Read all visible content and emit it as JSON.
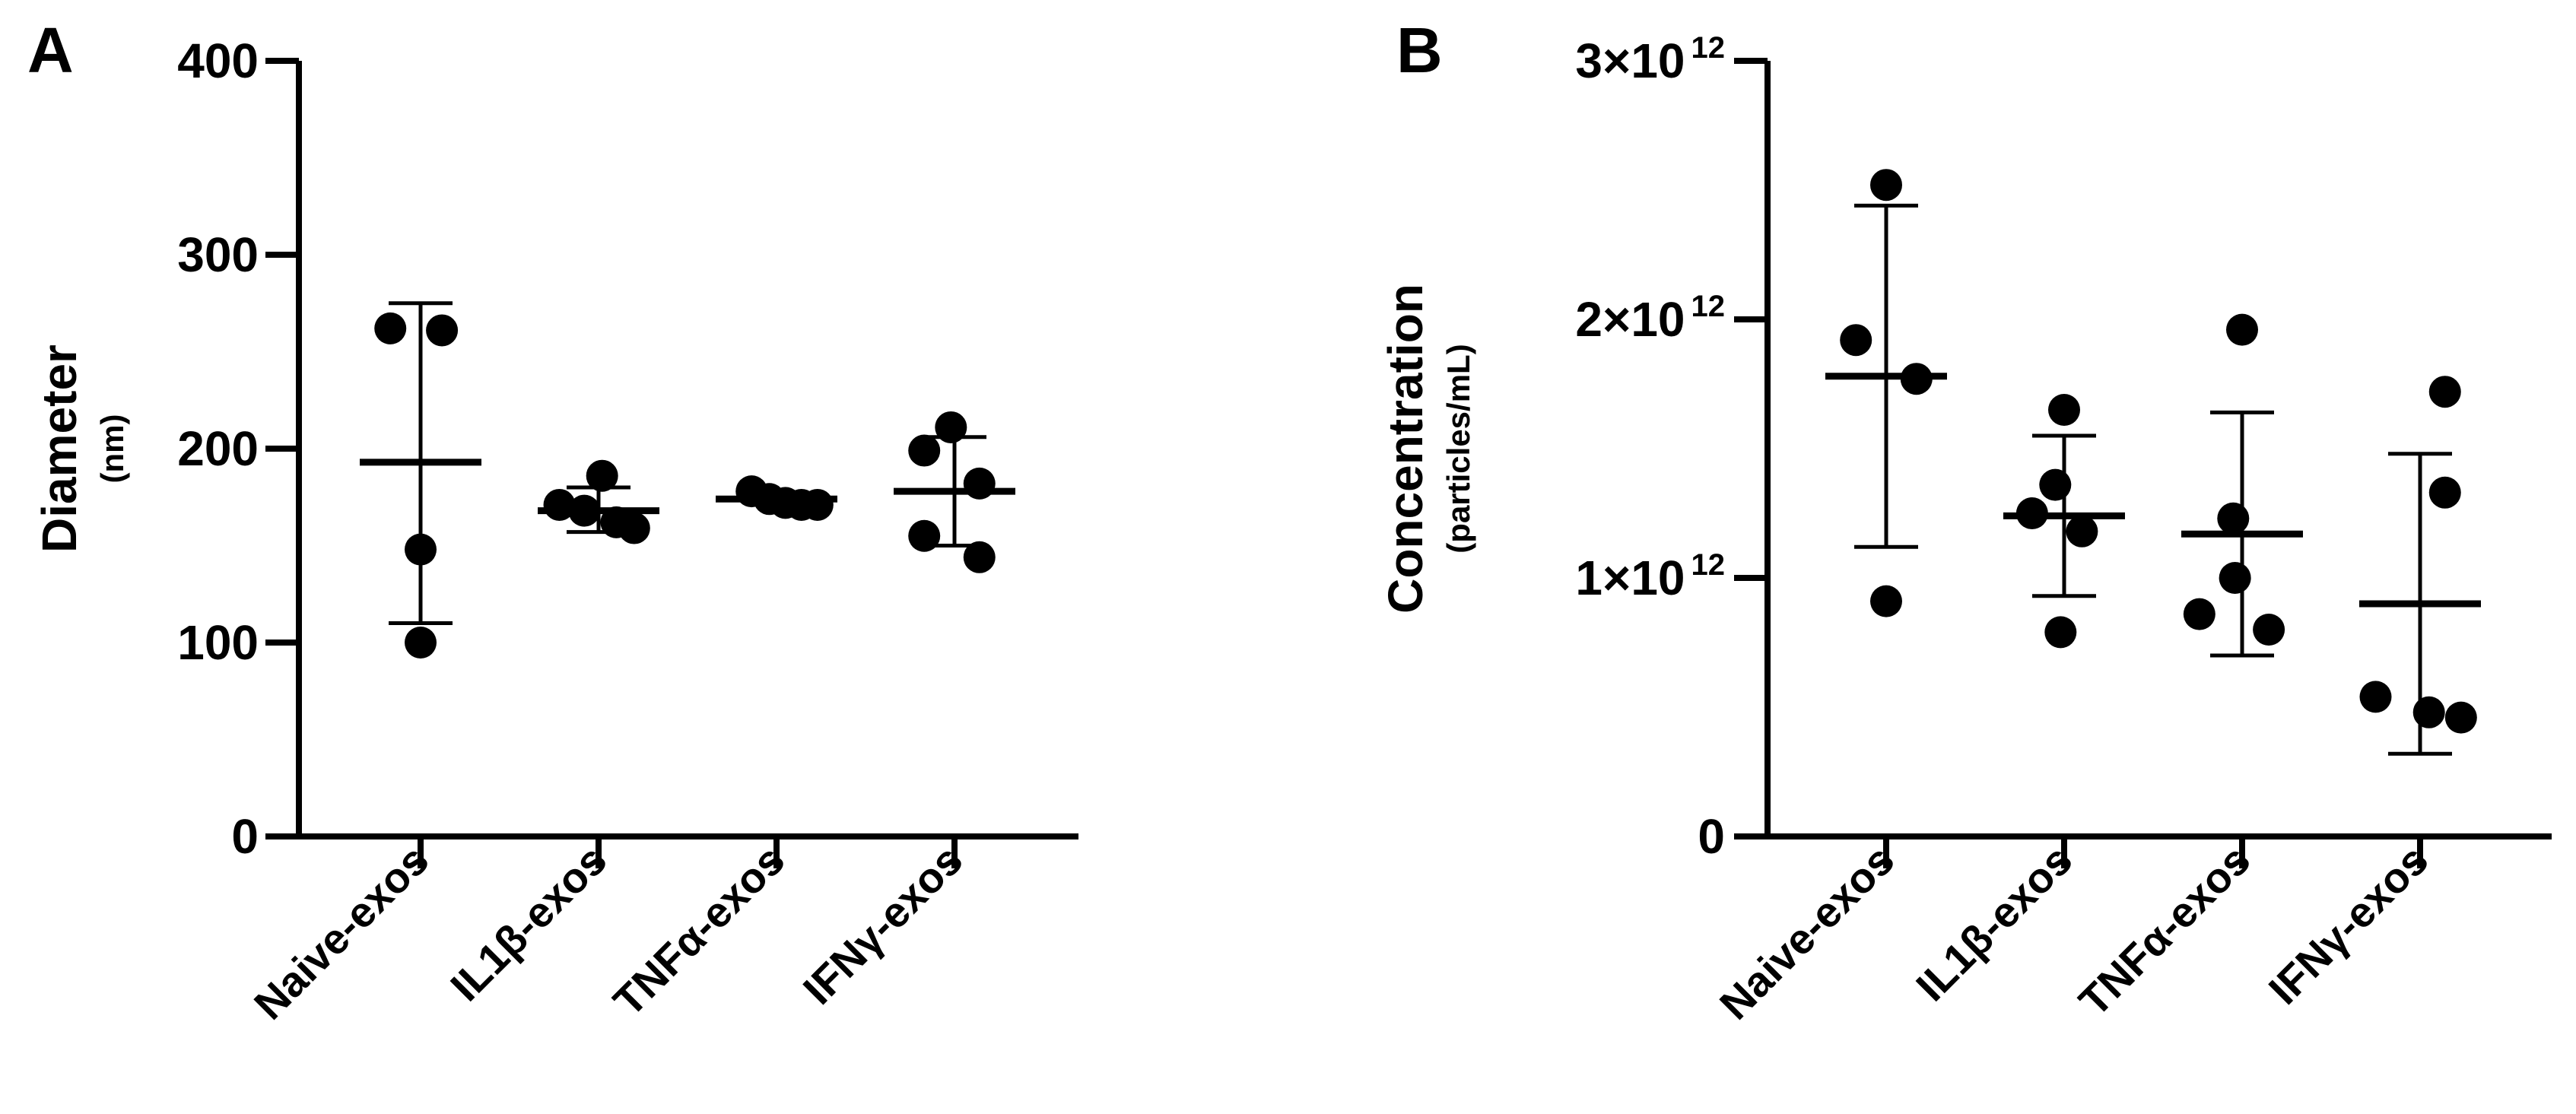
{
  "chart_data": [
    {
      "type": "scatter",
      "panel_label": "A",
      "ylabel": "Diameter",
      "yunit": "(nm)",
      "ylim": [
        0,
        400
      ],
      "yticks": [
        {
          "value": 0,
          "label": "0"
        },
        {
          "value": 100,
          "label": "100"
        },
        {
          "value": 200,
          "label": "200"
        },
        {
          "value": 300,
          "label": "300"
        },
        {
          "value": 400,
          "label": "400"
        }
      ],
      "categories": [
        "Naive-exos",
        "IL1β-exos",
        "TNFα-exos",
        "IFNγ-exos"
      ],
      "groups": [
        {
          "points": [
            [
              -0.17,
              262
            ],
            [
              0.12,
              261
            ],
            [
              0.0,
              148
            ],
            [
              0.0,
              100
            ]
          ],
          "mean": 193,
          "sd_low": 110,
          "sd_high": 275
        },
        {
          "points": [
            [
              -0.22,
              171
            ],
            [
              -0.08,
              168
            ],
            [
              0.02,
              186
            ],
            [
              0.1,
              162
            ],
            [
              0.2,
              159
            ]
          ],
          "mean": 168,
          "sd_low": 157,
          "sd_high": 180
        },
        {
          "points": [
            [
              -0.14,
              178
            ],
            [
              -0.04,
              174
            ],
            [
              0.05,
              172
            ],
            [
              0.14,
              171
            ],
            [
              0.23,
              171
            ]
          ],
          "mean": 174,
          "sd_low": 173,
          "sd_high": 175
        },
        {
          "points": [
            [
              -0.17,
              199
            ],
            [
              -0.02,
              211
            ],
            [
              0.14,
              182
            ],
            [
              -0.17,
              155
            ],
            [
              0.14,
              144
            ]
          ],
          "mean": 178,
          "sd_low": 150,
          "sd_high": 206
        }
      ]
    },
    {
      "type": "scatter",
      "panel_label": "B",
      "ylabel": "Concentration",
      "yunit": "(particles/mL)",
      "ylim": [
        0,
        3000000000000.0
      ],
      "yticks": [
        {
          "value": 0,
          "label": "0",
          "sup": ""
        },
        {
          "value": 1000000000000.0,
          "label": "1×10",
          "sup": "12"
        },
        {
          "value": 2000000000000.0,
          "label": "2×10",
          "sup": "12"
        },
        {
          "value": 3000000000000.0,
          "label": "3×10",
          "sup": "12"
        }
      ],
      "categories": [
        "Naive-exos",
        "IL1β-exos",
        "TNFα-exos",
        "IFNγ-exos"
      ],
      "groups": [
        {
          "points": [
            [
              0.0,
              2520000000000.0
            ],
            [
              -0.17,
              1920000000000.0
            ],
            [
              0.17,
              1770000000000.0
            ],
            [
              0.0,
              910000000000.0
            ]
          ],
          "mean": 1780000000000.0,
          "sd_low": 1120000000000.0,
          "sd_high": 2440000000000.0
        },
        {
          "points": [
            [
              0.0,
              1650000000000.0
            ],
            [
              -0.05,
              1360000000000.0
            ],
            [
              -0.18,
              1250000000000.0
            ],
            [
              0.1,
              1180000000000.0
            ],
            [
              -0.02,
              790000000000.0
            ]
          ],
          "mean": 1240000000000.0,
          "sd_low": 930000000000.0,
          "sd_high": 1550000000000.0
        },
        {
          "points": [
            [
              0.0,
              1960000000000.0
            ],
            [
              -0.05,
              1230000000000.0
            ],
            [
              -0.04,
              1000000000000.0
            ],
            [
              -0.24,
              860000000000.0
            ],
            [
              0.15,
              800000000000.0
            ]
          ],
          "mean": 1170000000000.0,
          "sd_low": 700000000000.0,
          "sd_high": 1640000000000.0
        },
        {
          "points": [
            [
              0.14,
              1720000000000.0
            ],
            [
              0.14,
              1330000000000.0
            ],
            [
              -0.25,
              540000000000.0
            ],
            [
              0.05,
              480000000000.0
            ],
            [
              0.23,
              460000000000.0
            ]
          ],
          "mean": 900000000000.0,
          "sd_low": 320000000000.0,
          "sd_high": 1480000000000.0
        }
      ]
    }
  ]
}
